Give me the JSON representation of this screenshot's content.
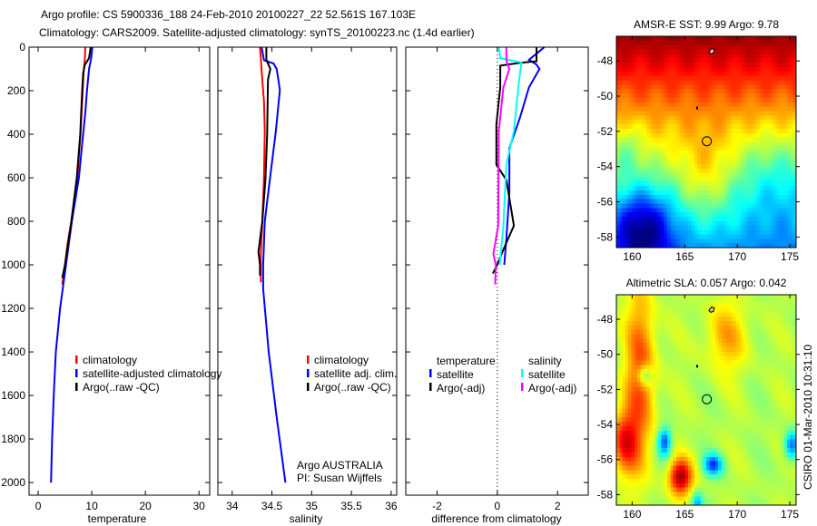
{
  "header": {
    "title_line1": "Argo profile: CS 5900336_188 24-Feb-2010 20100227_22 52.561S 167.103E",
    "title_line2": "Climatology: CARS2009. Satellite-adjusted climatology: synTS_20100223.nc (1.4d earlier)"
  },
  "credits": {
    "agency": "Argo AUSTRALIA",
    "pi": "PI: Susan Wijffels",
    "stamp": "CSIRO 01-Mar-2010 10:31:10"
  },
  "colors": {
    "climatology": "#ff0000",
    "satellite": "#0000ff",
    "argo": "#000000",
    "sal_satellite": "#00ffff",
    "sal_argo": "#ff00ff"
  },
  "chart_data": [
    {
      "type": "line",
      "id": "temperature",
      "xlabel": "temperature",
      "ylabel": "",
      "xlim": [
        -1.7,
        32
      ],
      "ylim": [
        2058,
        0
      ],
      "xticks": [
        0,
        10,
        20,
        30
      ],
      "xtick_labels": [
        "0",
        "10",
        "20",
        "30"
      ],
      "yticks": [
        0,
        200,
        400,
        600,
        800,
        1000,
        1200,
        1400,
        1600,
        1800,
        2000
      ],
      "ytick_labels": [
        "0",
        "200",
        "400",
        "600",
        "800",
        "1000",
        "1200",
        "1400",
        "1600",
        "1800",
        "2000"
      ],
      "legend": [
        "climatology",
        "satellite-adjusted climatology",
        "Argo(..raw -QC)"
      ],
      "series": [
        {
          "name": "climatology",
          "color": "#ff0000",
          "depth": [
            0,
            60,
            110,
            200,
            400,
            600,
            800,
            900,
            1000,
            1090
          ],
          "values": [
            8.8,
            8.7,
            8.5,
            8.3,
            7.9,
            7.3,
            6.2,
            5.5,
            5.0,
            4.5
          ]
        },
        {
          "name": "satellite-adjusted climatology",
          "color": "#0000ff",
          "depth": [
            0,
            50,
            100,
            200,
            300,
            400,
            600,
            800,
            1000,
            1200,
            1400,
            1600,
            1800,
            2000
          ],
          "values": [
            10.1,
            9.9,
            9.5,
            9.1,
            8.8,
            8.4,
            7.6,
            6.3,
            5.2,
            4.1,
            3.3,
            2.9,
            2.6,
            2.4
          ]
        },
        {
          "name": "Argo(..raw -QC)",
          "color": "#000000",
          "depth": [
            0,
            50,
            82,
            120,
            200,
            400,
            600,
            800,
            1000,
            1060
          ],
          "values": [
            9.8,
            9.5,
            8.7,
            8.4,
            8.2,
            7.85,
            7.2,
            6.2,
            5.0,
            4.5
          ]
        }
      ]
    },
    {
      "type": "line",
      "id": "salinity",
      "xlabel": "salinity",
      "xlim": [
        33.82,
        36.07
      ],
      "ylim": [
        2058,
        0
      ],
      "xticks": [
        34,
        34.5,
        35,
        35.5,
        36
      ],
      "xtick_labels": [
        "34",
        "34.5",
        "35",
        "35.5",
        "36"
      ],
      "legend": [
        "climatology",
        "satellite adj. clim.",
        "Argo(..raw -QC)"
      ],
      "series": [
        {
          "name": "climatology",
          "color": "#ff0000",
          "depth": [
            0,
            50,
            108,
            250,
            385,
            600,
            800,
            950,
            1080
          ],
          "values": [
            34.35,
            34.36,
            34.37,
            34.4,
            34.41,
            34.4,
            34.38,
            34.36,
            34.36
          ]
        },
        {
          "name": "satellite adj. clim.",
          "color": "#0000ff",
          "depth": [
            0,
            60,
            75,
            100,
            196,
            385,
            590,
            800,
            1000,
            1110,
            1400,
            1700,
            2000
          ],
          "values": [
            34.37,
            34.4,
            34.52,
            34.56,
            34.6,
            34.55,
            34.48,
            34.41,
            34.39,
            34.39,
            34.46,
            34.56,
            34.67
          ]
        },
        {
          "name": "Argo(..raw -QC)",
          "color": "#000000",
          "depth": [
            0,
            58,
            100,
            150,
            400,
            600,
            800,
            940,
            1000,
            1050
          ],
          "values": [
            34.43,
            34.43,
            34.48,
            34.45,
            34.44,
            34.42,
            34.38,
            34.33,
            34.35,
            34.35
          ]
        }
      ]
    },
    {
      "type": "line",
      "id": "difference",
      "xlabel": "difference from climatology",
      "xlim": [
        -3.04,
        3.02
      ],
      "ylim": [
        2058,
        0
      ],
      "xticks": [
        -2,
        0,
        2
      ],
      "xtick_labels": [
        "-2",
        "0",
        "2"
      ],
      "zero_line": "dotted",
      "legend_groups": [
        {
          "header": "temperature",
          "items": [
            "satellite",
            "Argo(-adj)"
          ]
        },
        {
          "header": "salinity",
          "items": [
            "satellite",
            "Argo(-adj)"
          ]
        }
      ],
      "series": [
        {
          "name": "temperature satellite",
          "color": "#0000ff",
          "depth": [
            0,
            30,
            58,
            80,
            100,
            185,
            325,
            465,
            670,
            880,
            1000
          ],
          "values": [
            1.56,
            1.3,
            1.05,
            1.3,
            1.4,
            1.05,
            0.75,
            0.4,
            0.4,
            0.3,
            0.23
          ]
        },
        {
          "name": "temperature Argo(-adj)",
          "color": "#000000",
          "depth": [
            0,
            65,
            72,
            85,
            185,
            355,
            540,
            610,
            820,
            930,
            1000,
            1040
          ],
          "values": [
            1.3,
            1.3,
            0.75,
            0.1,
            0.1,
            -0.03,
            -0.03,
            0.3,
            0.55,
            0.2,
            0.0,
            -0.15
          ]
        },
        {
          "name": "salinity satellite",
          "color": "#00ffff",
          "depth": [
            0,
            50,
            70,
            185,
            385,
            540,
            820,
            1000
          ],
          "values": [
            0.05,
            0.1,
            0.8,
            0.7,
            0.55,
            0.3,
            0.2,
            0.08
          ]
        },
        {
          "name": "salinity Argo(-adj)",
          "color": "#ff00ff",
          "depth": [
            0,
            60,
            100,
            185,
            385,
            820,
            950,
            1000,
            1090
          ],
          "values": [
            0.3,
            0.3,
            0.4,
            0.2,
            0.05,
            0.03,
            -0.13,
            -0.05,
            -0.07
          ]
        }
      ]
    },
    {
      "type": "heatmap",
      "id": "sst-map",
      "title": "AMSR-E SST: 9.99 Argo: 9.78",
      "xlim": [
        158.5,
        175.6
      ],
      "ylim": [
        -58.6,
        -46.6
      ],
      "xticks": [
        160,
        165,
        170,
        175
      ],
      "xtick_labels": [
        "160",
        "165",
        "170",
        "175"
      ],
      "yticks": [
        -48,
        -50,
        -52,
        -54,
        -56,
        -58
      ],
      "ytick_labels": [
        "-48",
        "-50",
        "-52",
        "-54",
        "-56",
        "-58"
      ],
      "float_position": [
        167.103,
        -52.561
      ]
    },
    {
      "type": "heatmap",
      "id": "sla-map",
      "title": "Altimetric SLA: 0.057 Argo: 0.042",
      "xlim": [
        158.5,
        175.6
      ],
      "ylim": [
        -58.6,
        -46.6
      ],
      "xticks": [
        160,
        165,
        170,
        175
      ],
      "xtick_labels": [
        "160",
        "165",
        "170",
        "175"
      ],
      "yticks": [
        -48,
        -50,
        -52,
        -54,
        -56,
        -58
      ],
      "ytick_labels": [
        "-48",
        "-50",
        "-52",
        "-54",
        "-56",
        "-58"
      ],
      "float_position": [
        167.103,
        -52.561
      ]
    }
  ]
}
